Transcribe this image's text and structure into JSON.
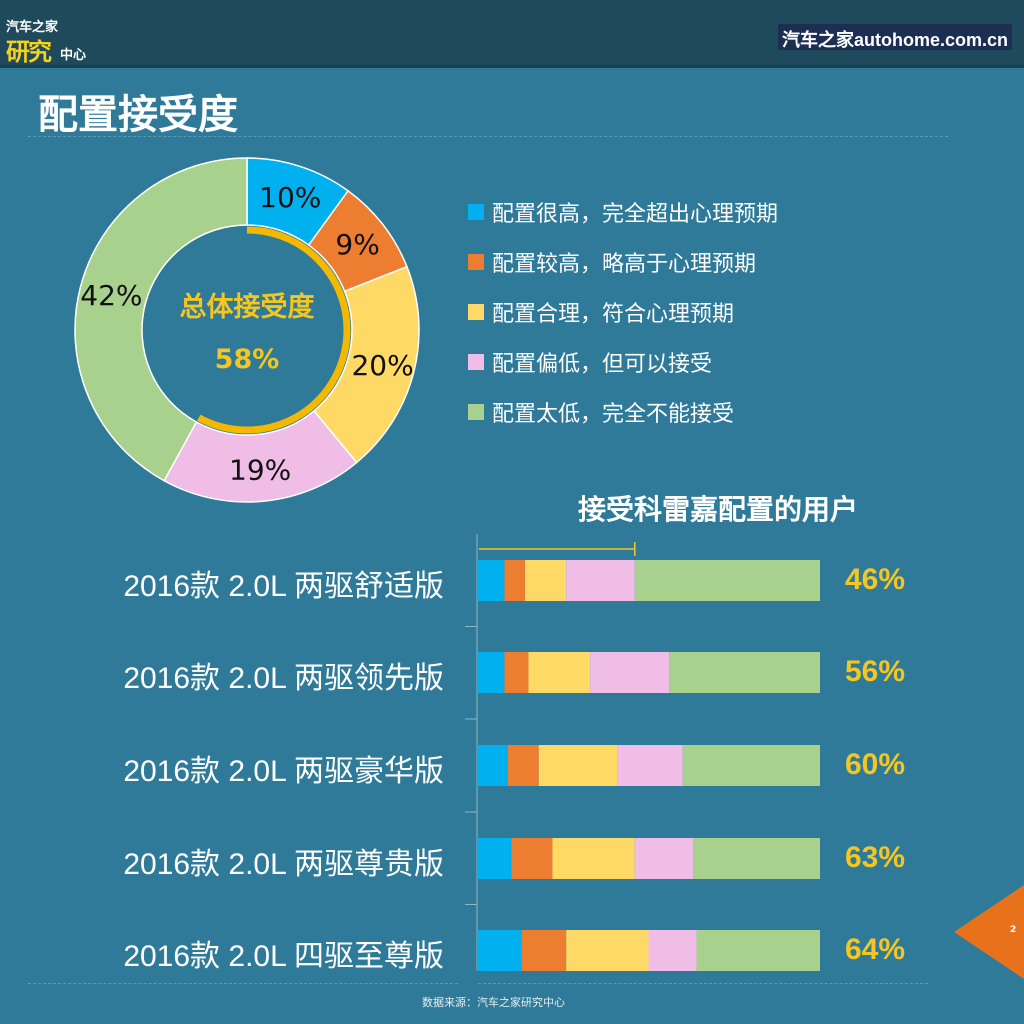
{
  "header": {
    "logo_line1": "汽车之家",
    "logo_line2": "研究",
    "logo_line3": "中心",
    "site": "汽车之家autohome.com.cn"
  },
  "title": "配置接受度",
  "colors": [
    "#00b0ef",
    "#ed7d31",
    "#ffd966",
    "#efbde6",
    "#a9d18e"
  ],
  "legend": [
    "配置很高，完全超出心理预期",
    "配置较高，略高于心理预期",
    "配置合理，符合心理预期",
    "配置偏低，但可以接受",
    "配置太低，完全不能接受"
  ],
  "chart_data": [
    {
      "type": "pie",
      "subtype": "donut",
      "center_label": "总体接受度",
      "center_value": "58%",
      "accept_fraction": 0.58,
      "values": [
        10,
        9,
        20,
        19,
        42
      ],
      "labels": [
        "10%",
        "9%",
        "20%",
        "19%",
        "42%"
      ],
      "legend_position": "right"
    },
    {
      "type": "bar",
      "subtype": "stacked-horizontal-100",
      "title": "接受科雷嘉配置的用户",
      "categories": [
        "2016款 2.0L 两驱舒适版",
        "2016款 2.0L 两驱领先版",
        "2016款 2.0L 两驱豪华版",
        "2016款 2.0L 两驱尊贵版",
        "2016款 2.0L 四驱至尊版"
      ],
      "series": [
        {
          "name": "配置很高，完全超出心理预期",
          "values": [
            8,
            8,
            9,
            10,
            13
          ]
        },
        {
          "name": "配置较高，略高于心理预期",
          "values": [
            6,
            7,
            9,
            12,
            13
          ]
        },
        {
          "name": "配置合理，符合心理预期",
          "values": [
            12,
            18,
            23,
            24,
            24
          ]
        },
        {
          "name": "配置偏低，但可以接受",
          "values": [
            20,
            23,
            19,
            17,
            14
          ]
        },
        {
          "name": "配置太低，完全不能接受",
          "values": [
            54,
            44,
            40,
            37,
            36
          ]
        }
      ],
      "totals": [
        "46%",
        "56%",
        "60%",
        "63%",
        "64%"
      ],
      "xlim": [
        0,
        100
      ]
    }
  ],
  "footer": {
    "source": "数据来源：汽车之家研究中心",
    "page": "2"
  }
}
